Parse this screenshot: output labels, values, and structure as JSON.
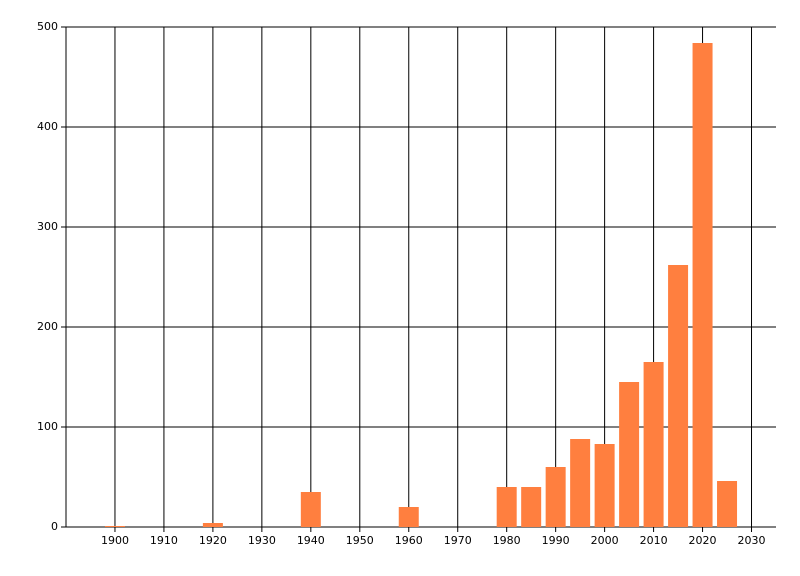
{
  "chart_data": {
    "type": "bar",
    "x": [
      1900,
      1920,
      1940,
      1960,
      1980,
      1985,
      1990,
      1995,
      2000,
      2005,
      2010,
      2015,
      2020,
      2025
    ],
    "values": [
      1,
      4,
      35,
      20,
      40,
      40,
      60,
      88,
      83,
      145,
      165,
      262,
      484,
      46
    ],
    "color": "#ff7f3f",
    "xlim": [
      1890,
      2035
    ],
    "xticks": [
      1900,
      1910,
      1920,
      1930,
      1940,
      1950,
      1960,
      1970,
      1980,
      1990,
      2000,
      2010,
      2020,
      2030
    ],
    "ylim": [
      0,
      500
    ],
    "yticks": [
      0,
      100,
      200,
      300,
      400,
      500
    ],
    "grid": true
  }
}
